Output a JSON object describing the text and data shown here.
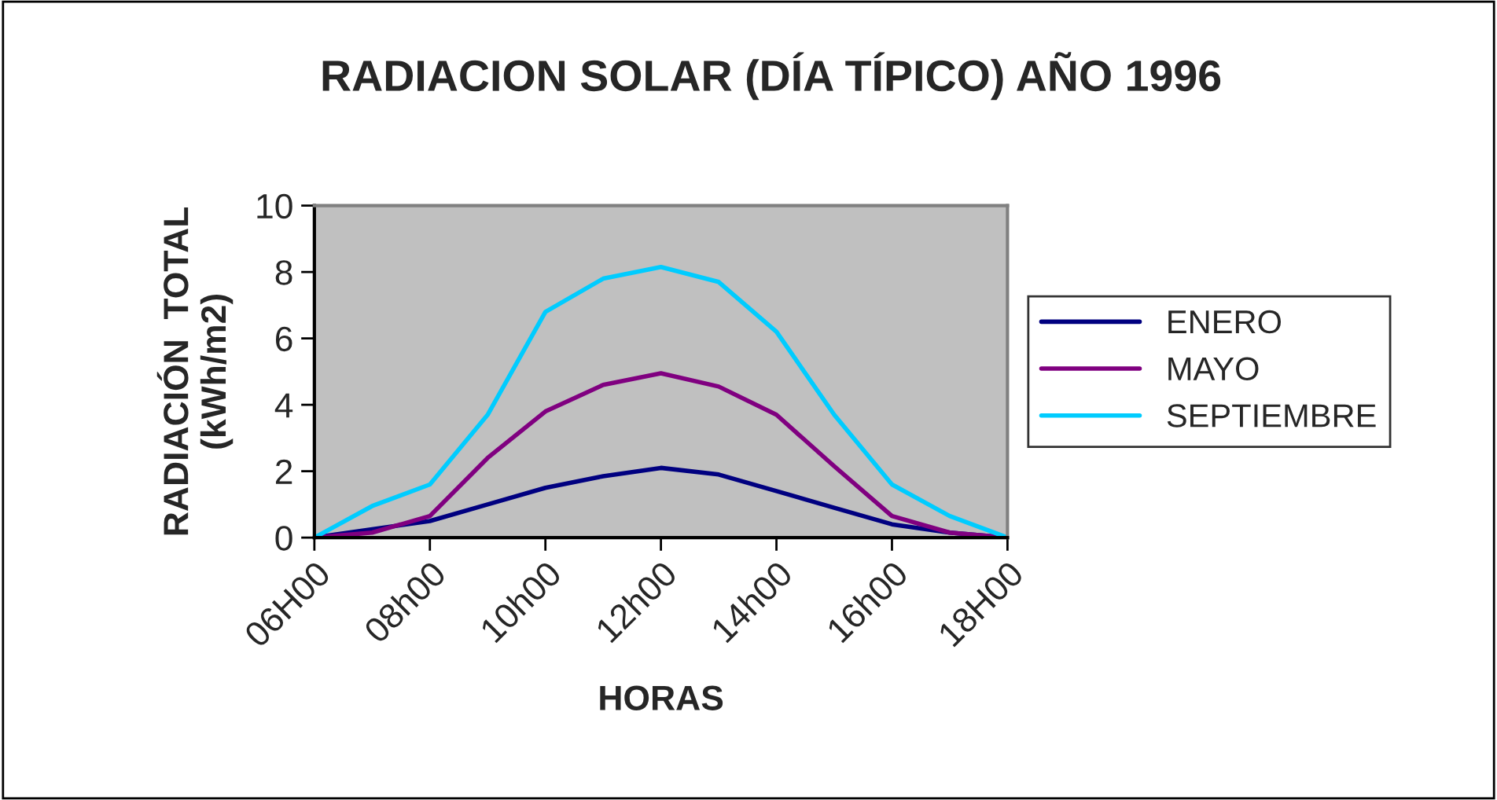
{
  "chart_data": {
    "type": "line",
    "title": "RADIACION SOLAR (DÍA TÍPICO) AÑO 1996",
    "xlabel": "HORAS",
    "ylabel": "RADIACIÓN  TOTAL\n(kWh/m2)",
    "categories": [
      "06H00",
      null,
      "08h00",
      null,
      "10h00",
      null,
      "12h00",
      null,
      "14h00",
      null,
      "16h00",
      null,
      "18H00"
    ],
    "series": [
      {
        "name": "ENERO",
        "color": "#000080",
        "values": [
          0,
          0.25,
          0.5,
          1.0,
          1.5,
          1.85,
          2.1,
          1.9,
          1.4,
          0.9,
          0.4,
          0.15,
          0
        ]
      },
      {
        "name": "MAYO",
        "color": "#800080",
        "values": [
          0,
          0.15,
          0.65,
          2.4,
          3.8,
          4.6,
          4.95,
          4.55,
          3.7,
          2.15,
          0.65,
          0.15,
          0
        ]
      },
      {
        "name": "SEPTIEMBRE",
        "color": "#00ccff",
        "values": [
          0,
          0.95,
          1.6,
          3.7,
          6.8,
          7.8,
          8.15,
          7.7,
          6.2,
          3.7,
          1.6,
          0.65,
          0
        ]
      }
    ],
    "ylim": [
      0,
      10
    ],
    "yticks": [
      0,
      2,
      4,
      6,
      8,
      10
    ],
    "grid": false,
    "legend": "right",
    "marker": "none",
    "line_style": "solid"
  }
}
